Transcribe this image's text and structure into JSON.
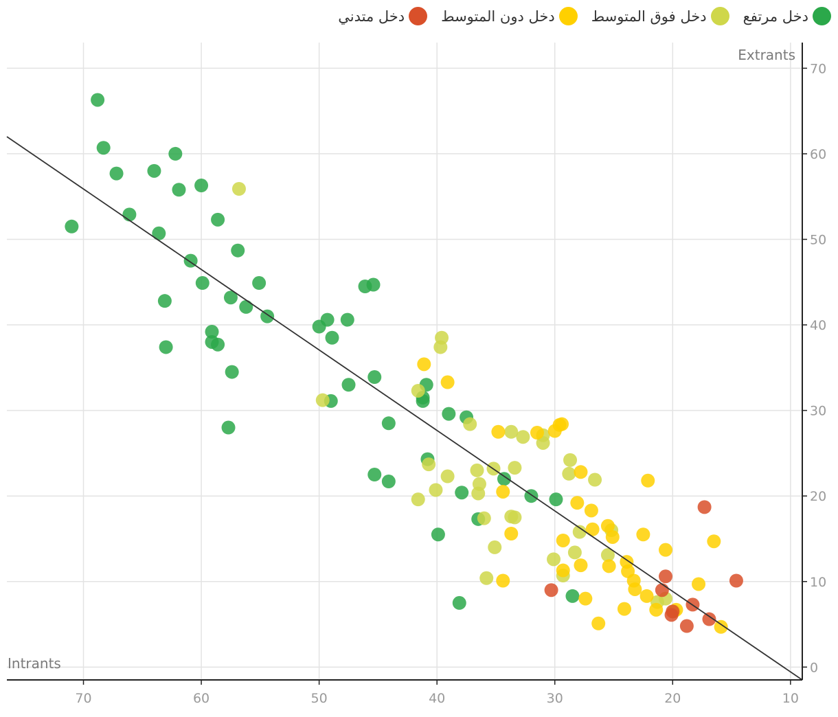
{
  "chart_data": {
    "type": "scatter",
    "xlabel": "Intrants",
    "ylabel": "Extrants",
    "xlim": [
      76.5,
      9
    ],
    "ylim": [
      -1.5,
      73
    ],
    "x_ticks": [
      70,
      60,
      50,
      40,
      30,
      20,
      10
    ],
    "y_ticks": [
      0,
      10,
      20,
      30,
      40,
      50,
      60,
      70
    ],
    "grid": true,
    "legend_position": "top-right",
    "trend_line": {
      "x": [
        76.5,
        9
      ],
      "y": [
        62,
        -1.5
      ]
    },
    "series": [
      {
        "name": "دخل مرتفع",
        "color": "#2ba84a",
        "points": [
          [
            68.8,
            66.3
          ],
          [
            68.3,
            60.7
          ],
          [
            67.2,
            57.7
          ],
          [
            66.1,
            52.9
          ],
          [
            64,
            58
          ],
          [
            63.6,
            50.7
          ],
          [
            62.2,
            60
          ],
          [
            61.9,
            55.8
          ],
          [
            71,
            51.5
          ],
          [
            63.1,
            42.8
          ],
          [
            63,
            37.4
          ],
          [
            60,
            56.3
          ],
          [
            60.9,
            47.5
          ],
          [
            59.9,
            44.9
          ],
          [
            58.6,
            52.3
          ],
          [
            56.9,
            48.7
          ],
          [
            57.5,
            43.2
          ],
          [
            56.2,
            42.1
          ],
          [
            55.1,
            44.9
          ],
          [
            54.4,
            41
          ],
          [
            59.1,
            39.2
          ],
          [
            59.1,
            38
          ],
          [
            58.6,
            37.7
          ],
          [
            57.4,
            34.5
          ],
          [
            57.7,
            28
          ],
          [
            50,
            39.8
          ],
          [
            49.3,
            40.6
          ],
          [
            47.6,
            40.6
          ],
          [
            48.9,
            38.5
          ],
          [
            46.1,
            44.5
          ],
          [
            45.4,
            44.7
          ],
          [
            49,
            31.1
          ],
          [
            47.5,
            33
          ],
          [
            45.3,
            33.9
          ],
          [
            44.1,
            28.5
          ],
          [
            41.2,
            31.1
          ],
          [
            41.2,
            31.5
          ],
          [
            40.9,
            33
          ],
          [
            39,
            29.6
          ],
          [
            37.5,
            29.2
          ],
          [
            40.8,
            24.3
          ],
          [
            45.3,
            22.5
          ],
          [
            44.1,
            21.7
          ],
          [
            37.9,
            20.4
          ],
          [
            36.5,
            17.3
          ],
          [
            39.9,
            15.5
          ],
          [
            34.3,
            22
          ],
          [
            32,
            20
          ],
          [
            29.9,
            19.6
          ],
          [
            38.1,
            7.5
          ],
          [
            28.5,
            8.3
          ]
        ]
      },
      {
        "name": "دخل فوق المتوسط",
        "color": "#cfd74a",
        "points": [
          [
            56.8,
            55.9
          ],
          [
            49.7,
            31.2
          ],
          [
            41.6,
            32.3
          ],
          [
            39.6,
            38.5
          ],
          [
            39.7,
            37.4
          ],
          [
            37.2,
            28.4
          ],
          [
            40.7,
            23.7
          ],
          [
            39.1,
            22.3
          ],
          [
            40.1,
            20.7
          ],
          [
            41.6,
            19.6
          ],
          [
            36.6,
            23
          ],
          [
            36.4,
            21.4
          ],
          [
            36.5,
            20.3
          ],
          [
            36,
            17.4
          ],
          [
            35.2,
            23.2
          ],
          [
            35.1,
            14
          ],
          [
            35.8,
            10.4
          ],
          [
            33.7,
            27.5
          ],
          [
            32.7,
            26.9
          ],
          [
            31,
            27.1
          ],
          [
            31,
            26.2
          ],
          [
            33.4,
            23.3
          ],
          [
            33.7,
            17.6
          ],
          [
            33.4,
            17.5
          ],
          [
            28.7,
            24.2
          ],
          [
            28.8,
            22.6
          ],
          [
            26.6,
            21.9
          ],
          [
            30.1,
            12.6
          ],
          [
            29.3,
            10.7
          ],
          [
            28.3,
            13.4
          ],
          [
            27.9,
            15.8
          ],
          [
            25.5,
            13.1
          ],
          [
            25.2,
            16
          ],
          [
            21.3,
            7.6
          ],
          [
            20.6,
            8
          ],
          [
            19.9,
            6.5
          ]
        ]
      },
      {
        "name": "دخل دون المتوسط",
        "color": "#ffd000",
        "points": [
          [
            41.1,
            35.4
          ],
          [
            39.1,
            33.3
          ],
          [
            34.8,
            27.5
          ],
          [
            31.5,
            27.4
          ],
          [
            29.6,
            28.3
          ],
          [
            29.4,
            28.4
          ],
          [
            30,
            27.6
          ],
          [
            34.4,
            20.5
          ],
          [
            33.7,
            15.6
          ],
          [
            34.4,
            10.1
          ],
          [
            29.3,
            14.8
          ],
          [
            29.3,
            11.3
          ],
          [
            28.1,
            19.2
          ],
          [
            27.8,
            22.8
          ],
          [
            26.9,
            18.3
          ],
          [
            26.8,
            16.1
          ],
          [
            27.8,
            11.9
          ],
          [
            27.4,
            8
          ],
          [
            26.3,
            5.1
          ],
          [
            25.5,
            16.5
          ],
          [
            25.1,
            15.2
          ],
          [
            25.4,
            11.8
          ],
          [
            23.9,
            12.3
          ],
          [
            23.8,
            11.2
          ],
          [
            23.3,
            10.1
          ],
          [
            23.2,
            9.1
          ],
          [
            22.5,
            15.5
          ],
          [
            22.2,
            8.3
          ],
          [
            22.1,
            21.8
          ],
          [
            24.1,
            6.8
          ],
          [
            21.4,
            6.7
          ],
          [
            20.6,
            13.7
          ],
          [
            19.7,
            6.7
          ],
          [
            17.8,
            9.7
          ],
          [
            16.5,
            14.7
          ],
          [
            15.9,
            4.7
          ]
        ]
      },
      {
        "name": "دخل متدني",
        "color": "#d9502a",
        "points": [
          [
            30.3,
            9
          ],
          [
            20.6,
            10.6
          ],
          [
            20.9,
            9
          ],
          [
            20.1,
            6.1
          ],
          [
            20,
            6.5
          ],
          [
            18.3,
            7.3
          ],
          [
            18.8,
            4.8
          ],
          [
            17.3,
            18.7
          ],
          [
            16.9,
            5.6
          ],
          [
            14.6,
            10.1
          ]
        ]
      }
    ]
  }
}
